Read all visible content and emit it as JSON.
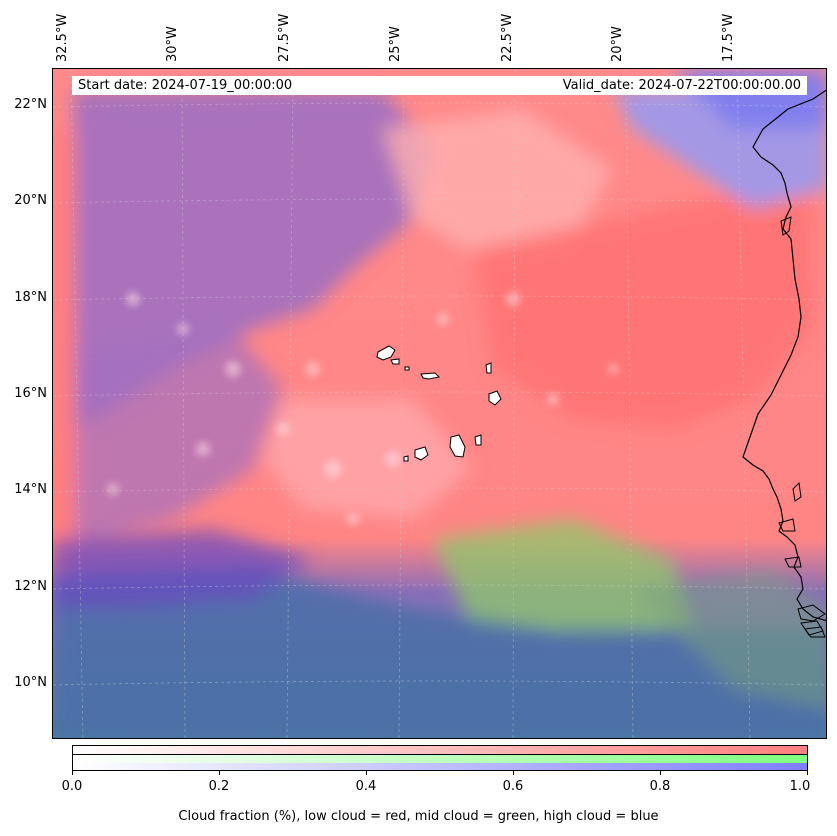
{
  "map": {
    "lon_labels": [
      "32.5°W",
      "30°W",
      "27.5°W",
      "25°W",
      "22.5°W",
      "20°W",
      "17.5°W"
    ],
    "lat_labels": [
      "22°N",
      "20°N",
      "18°N",
      "16°N",
      "14°N",
      "12°N",
      "10°N"
    ]
  },
  "header": {
    "start_date": "Start date: 2024-07-19_00:00:00",
    "valid_date": "Valid_date: 2024-07-22T00:00:00.00"
  },
  "colorbar": {
    "ticks": [
      "0.0",
      "0.2",
      "0.4",
      "0.6",
      "0.8",
      "1.0"
    ],
    "caption": "Cloud fraction (%), low cloud = red, mid cloud = green, high cloud = blue",
    "colors": {
      "low": "#ff7f7f",
      "mid": "#7fff7f",
      "high": "#7f7fff"
    }
  }
}
